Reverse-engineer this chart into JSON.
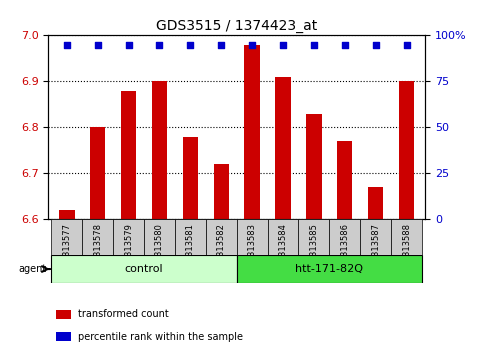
{
  "title": "GDS3515 / 1374423_at",
  "samples": [
    "GSM313577",
    "GSM313578",
    "GSM313579",
    "GSM313580",
    "GSM313581",
    "GSM313582",
    "GSM313583",
    "GSM313584",
    "GSM313585",
    "GSM313586",
    "GSM313587",
    "GSM313588"
  ],
  "bar_values": [
    6.62,
    6.8,
    6.88,
    6.9,
    6.78,
    6.72,
    6.98,
    6.91,
    6.83,
    6.77,
    6.67,
    6.9
  ],
  "percentile_values": [
    95,
    95,
    95,
    95,
    95,
    95,
    95,
    95,
    95,
    95,
    95,
    95
  ],
  "bar_color": "#cc0000",
  "percentile_color": "#0000cc",
  "ymin": 6.6,
  "ymax": 7.0,
  "yticks": [
    6.6,
    6.7,
    6.8,
    6.9,
    7.0
  ],
  "right_yticks": [
    0,
    25,
    50,
    75,
    100
  ],
  "right_yticklabels": [
    "0",
    "25",
    "50",
    "75",
    "100%"
  ],
  "groups": [
    {
      "label": "control",
      "start": 0,
      "end": 5,
      "color": "#ccffcc"
    },
    {
      "label": "htt-171-82Q",
      "start": 6,
      "end": 11,
      "color": "#44dd44"
    }
  ],
  "agent_label": "agent",
  "legend_items": [
    {
      "label": "transformed count",
      "color": "#cc0000"
    },
    {
      "label": "percentile rank within the sample",
      "color": "#0000cc"
    }
  ],
  "background_color": "#ffffff",
  "plot_bg": "#ffffff",
  "tick_label_bg": "#cccccc"
}
